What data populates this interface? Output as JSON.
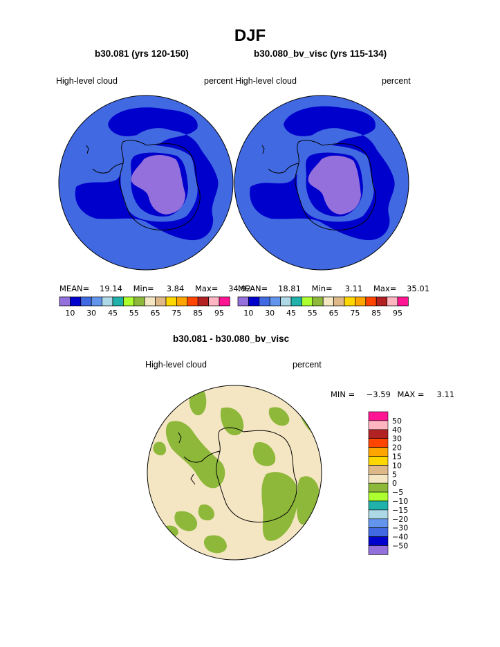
{
  "page": {
    "title": "DJF"
  },
  "colors": {
    "ocean_low": "#4169E1",
    "mid": "#0000CD",
    "high": "#9370DB",
    "diff_zero": "#F5E6C3",
    "diff_neg5": "#8DB83A",
    "coast": "#000000"
  },
  "chart_data": [
    {
      "type": "heatmap",
      "projection": "polar-stereographic-south",
      "title": "b30.081 (yrs 120-150)",
      "variable": "High-level cloud",
      "units": "percent",
      "stats": {
        "mean_label": "MEAN=",
        "mean": "19.14",
        "min_label": "Min=",
        "min": "3.84",
        "max_label": "Max=",
        "max": "34.92"
      },
      "colorbar": {
        "colors": [
          "#9370DB",
          "#0000CD",
          "#4169E1",
          "#6495ED",
          "#ADD8E6",
          "#20B2AA",
          "#ADFF2F",
          "#8DB83A",
          "#F5E6C3",
          "#DEB887",
          "#FFD700",
          "#FFA500",
          "#FF4500",
          "#B22222",
          "#FFB6C1",
          "#FF1493"
        ],
        "tick_labels": [
          "10",
          "30",
          "45",
          "55",
          "65",
          "75",
          "85",
          "95"
        ]
      }
    },
    {
      "type": "heatmap",
      "projection": "polar-stereographic-south",
      "title": "b30.080_bv_visc (yrs 115-134)",
      "variable": "High-level cloud",
      "units": "percent",
      "stats": {
        "mean_label": "MEAN=",
        "mean": "18.81",
        "min_label": "Min=",
        "min": "3.11",
        "max_label": "Max=",
        "max": "35.01"
      },
      "colorbar": {
        "colors": [
          "#9370DB",
          "#0000CD",
          "#4169E1",
          "#6495ED",
          "#ADD8E6",
          "#20B2AA",
          "#ADFF2F",
          "#8DB83A",
          "#F5E6C3",
          "#DEB887",
          "#FFD700",
          "#FFA500",
          "#FF4500",
          "#B22222",
          "#FFB6C1",
          "#FF1493"
        ],
        "tick_labels": [
          "10",
          "30",
          "45",
          "55",
          "65",
          "75",
          "85",
          "95"
        ]
      }
    },
    {
      "type": "heatmap",
      "projection": "polar-stereographic-south",
      "title": "b30.081 - b30.080_bv_visc",
      "variable": "High-level cloud",
      "units": "percent",
      "stats": {
        "min_label": "MIN =",
        "min": "−3.59",
        "max_label": "MAX =",
        "max": "3.11"
      },
      "colorbar": {
        "colors_top_to_bottom": [
          "#FF1493",
          "#FFB6C1",
          "#B22222",
          "#FF4500",
          "#FFA500",
          "#FFD700",
          "#DEB887",
          "#F5E6C3",
          "#8DB83A",
          "#ADFF2F",
          "#20B2AA",
          "#ADD8E6",
          "#6495ED",
          "#4169E1",
          "#0000CD",
          "#9370DB"
        ],
        "tick_labels_top_to_bottom": [
          "50",
          "40",
          "30",
          "20",
          "15",
          "10",
          "5",
          "0",
          "−5",
          "−10",
          "−15",
          "−20",
          "−30",
          "−40",
          "−50"
        ]
      }
    }
  ]
}
